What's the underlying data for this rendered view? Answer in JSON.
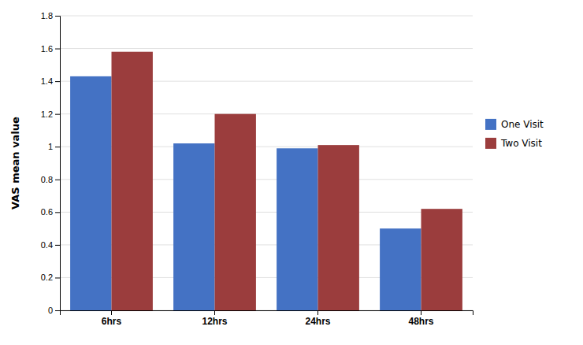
{
  "chart_data": {
    "type": "bar",
    "categories": [
      "6hrs",
      "12hrs",
      "24hrs",
      "48hrs"
    ],
    "series": [
      {
        "name": "One Visit",
        "color": "#4472C4",
        "values": [
          1.43,
          1.02,
          0.99,
          0.5
        ]
      },
      {
        "name": "Two Visit",
        "color": "#9B3D3D",
        "values": [
          1.58,
          1.2,
          1.01,
          0.62
        ]
      }
    ],
    "ylabel": "VAS mean value",
    "ylim": [
      0,
      1.8
    ],
    "yticks": [
      0,
      0.2,
      0.4,
      0.6,
      0.8,
      1,
      1.2,
      1.4,
      1.6,
      1.8
    ],
    "grid": true,
    "legend": "right"
  }
}
